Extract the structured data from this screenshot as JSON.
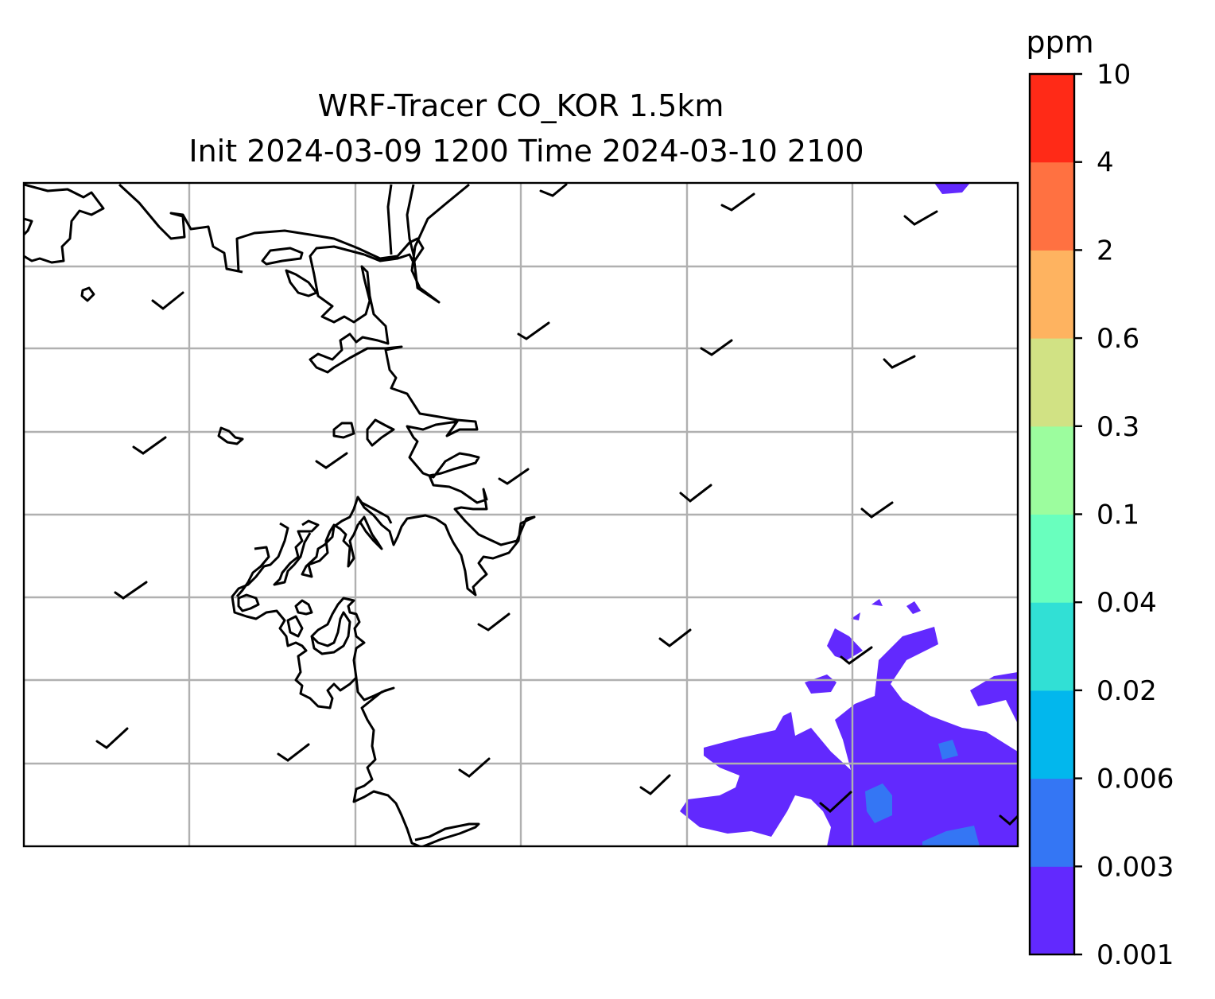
{
  "title": {
    "line1": "WRF-Tracer CO_KOR 1.5km",
    "line2": "Init 2024-03-09 1200 Time 2024-03-10 2100"
  },
  "colorbar": {
    "unit": "ppm",
    "levels": [
      "0.001",
      "0.003",
      "0.006",
      "0.02",
      "0.04",
      "0.1",
      "0.3",
      "0.6",
      "2",
      "4",
      "10"
    ],
    "colors": [
      "#6229fe",
      "#3476f4",
      "#02b7ed",
      "#31e0d5",
      "#69ffbe",
      "#9cfd9e",
      "#d1e284",
      "#feb360",
      "#ff7141",
      "#ff2a17"
    ]
  },
  "map": {
    "gridlines": true,
    "features": [
      "coastline",
      "wind-barbs",
      "tracer-concentration-fill"
    ]
  }
}
